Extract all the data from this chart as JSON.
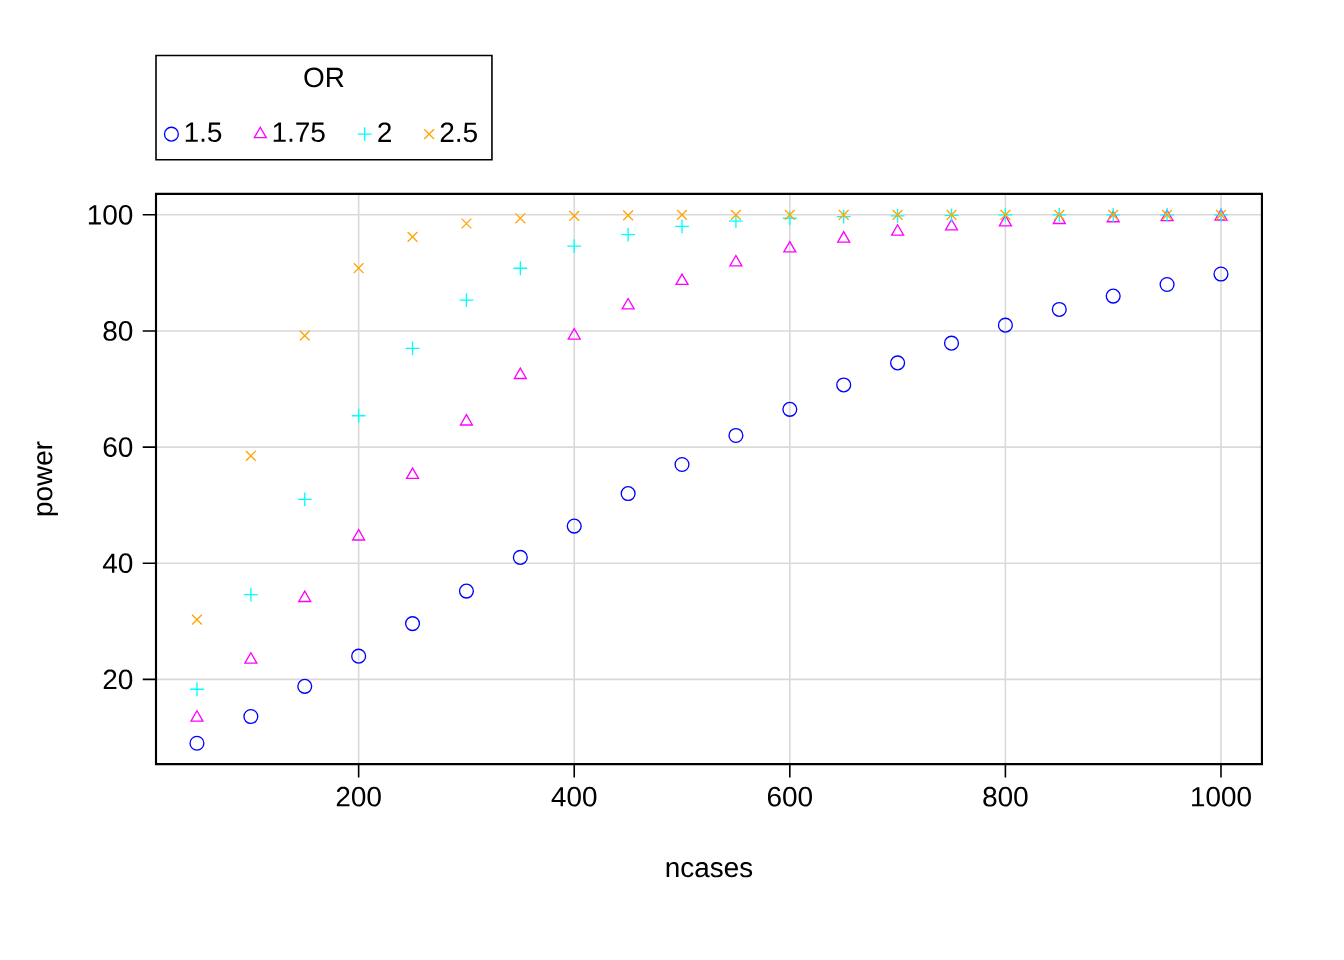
{
  "chart_data": {
    "type": "scatter",
    "xlabel": "ncases",
    "ylabel": "power",
    "legend_title": "OR",
    "legend": "top left",
    "grid": true,
    "x": [
      50,
      100,
      150,
      200,
      250,
      300,
      350,
      400,
      450,
      500,
      550,
      600,
      650,
      700,
      750,
      800,
      850,
      900,
      950,
      1000
    ],
    "xlim": [
      12,
      1038
    ],
    "xticks": [
      200,
      400,
      600,
      800,
      1000
    ],
    "ylim": [
      5.4,
      103.6
    ],
    "yticks": [
      20,
      40,
      60,
      80,
      100
    ],
    "series": [
      {
        "name": "1.5",
        "color": "#0000ff",
        "marker": "circle",
        "values": [
          9,
          13.6,
          18.8,
          24,
          29.6,
          35.2,
          41,
          46.4,
          52,
          57,
          62,
          66.5,
          70.7,
          74.5,
          77.9,
          81,
          83.7,
          86,
          88,
          89.8
        ]
      },
      {
        "name": "1.75",
        "color": "#ff00ff",
        "marker": "triangle",
        "values": [
          13.4,
          23.4,
          34,
          44.6,
          55.2,
          64.4,
          72.4,
          79.2,
          84.4,
          88.6,
          91.8,
          94.2,
          95.9,
          97.1,
          98,
          98.7,
          99.1,
          99.4,
          99.6,
          99.7
        ]
      },
      {
        "name": "2",
        "color": "#00ffff",
        "marker": "plus",
        "values": [
          18.3,
          34.6,
          51,
          65.4,
          77,
          85.3,
          90.8,
          94.6,
          96.6,
          98,
          98.9,
          99.4,
          99.7,
          99.8,
          99.9,
          100,
          100,
          100,
          100,
          100
        ]
      },
      {
        "name": "2.5",
        "color": "#ffa500",
        "marker": "cross",
        "values": [
          30.3,
          58.5,
          79.2,
          90.8,
          96.2,
          98.5,
          99.4,
          99.8,
          99.9,
          100,
          100,
          100,
          100,
          100,
          100,
          100,
          100,
          100,
          100,
          100
        ]
      }
    ]
  }
}
